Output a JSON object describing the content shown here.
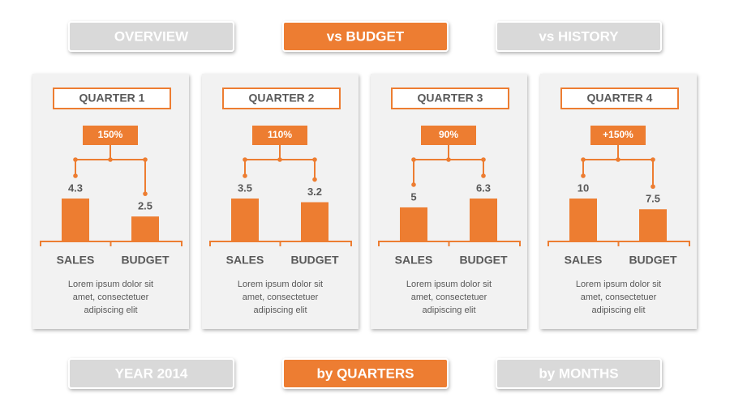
{
  "tabs_top": {
    "items": [
      "OVERVIEW",
      "vs BUDGET",
      "vs HISTORY"
    ],
    "active": 1
  },
  "tabs_bottom": {
    "items": [
      "YEAR 2014",
      "by QUARTERS",
      "by MONTHS"
    ],
    "active": 1
  },
  "chart_data": [
    {
      "type": "bar",
      "title": "QUARTER 1",
      "annotation": "150%",
      "categories": [
        "SALES",
        "BUDGET"
      ],
      "values": [
        4.3,
        2.5
      ],
      "color": "#ed7d31",
      "description": [
        "Lorem ipsum dolor sit",
        "amet, consectetuer",
        "adipiscing elit"
      ]
    },
    {
      "type": "bar",
      "title": "QUARTER 2",
      "annotation": "110%",
      "categories": [
        "SALES",
        "BUDGET"
      ],
      "values": [
        3.5,
        3.2
      ],
      "color": "#ed7d31",
      "description": [
        "Lorem ipsum dolor sit",
        "amet, consectetuer",
        "adipiscing elit"
      ]
    },
    {
      "type": "bar",
      "title": "QUARTER 3",
      "annotation": "90%",
      "categories": [
        "SALES",
        "BUDGET"
      ],
      "values": [
        5,
        6.3
      ],
      "color": "#ed7d31",
      "description": [
        "Lorem ipsum dolor sit",
        "amet, consectetuer",
        "adipiscing elit"
      ]
    },
    {
      "type": "bar",
      "title": "QUARTER 4",
      "annotation": "+150%",
      "categories": [
        "SALES",
        "BUDGET"
      ],
      "values": [
        10,
        7.5
      ],
      "color": "#ed7d31",
      "description": [
        "Lorem ipsum dolor sit",
        "amet, consectetuer",
        "adipiscing elit"
      ]
    }
  ]
}
